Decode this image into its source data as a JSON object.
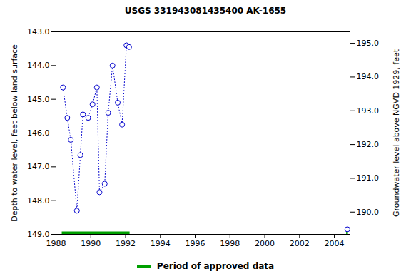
{
  "chart_data": {
    "type": "line",
    "title": "USGS 331943081435400 AK-1655",
    "x_label": null,
    "y_label": "Depth to water level, feet below land surface",
    "y2_label": "Groundwater level above NGVD 1929, feet",
    "x": [
      1988.4,
      1988.65,
      1988.85,
      1989.2,
      1989.4,
      1989.55,
      1989.85,
      1990.1,
      1990.35,
      1990.5,
      1990.8,
      1991.0,
      1991.25,
      1991.55,
      1991.8,
      1992.05,
      1992.2,
      null,
      2004.75
    ],
    "series": [
      {
        "name": "Depth to water level",
        "color": "#0000cc",
        "marker": "circle",
        "line_style": "dotted",
        "values": [
          144.65,
          145.55,
          146.2,
          148.3,
          146.65,
          145.45,
          145.55,
          145.15,
          144.65,
          147.75,
          147.5,
          145.4,
          144.0,
          145.1,
          145.75,
          143.4,
          143.45,
          null,
          148.85
        ]
      }
    ],
    "approved_periods": {
      "name": "Period of approved data",
      "color": "#00a000",
      "ranges": [
        [
          1988.35,
          1992.25
        ],
        [
          2004.7,
          2004.8
        ]
      ]
    },
    "xlim": [
      1988,
      2004.9
    ],
    "xticks": [
      1988,
      1990,
      1992,
      1994,
      1996,
      1998,
      2000,
      2002,
      2004
    ],
    "ylim": [
      143,
      149
    ],
    "yticks": [
      {
        "value": 143,
        "label": "143.0"
      },
      {
        "value": 144,
        "label": "144.0"
      },
      {
        "value": 145,
        "label": "145.0"
      },
      {
        "value": 146,
        "label": "146.0"
      },
      {
        "value": 147,
        "label": "147.0"
      },
      {
        "value": 148,
        "label": "148.0"
      },
      {
        "value": 149,
        "label": "149.0"
      }
    ],
    "y2lim": [
      195.34,
      189.34
    ],
    "y2ticks": [
      {
        "value": 190,
        "label": "190.0"
      },
      {
        "value": 191,
        "label": "191.0"
      },
      {
        "value": 192,
        "label": "192.0"
      },
      {
        "value": 193,
        "label": "193.0"
      },
      {
        "value": 194,
        "label": "194.0"
      },
      {
        "value": 195,
        "label": "195.0"
      }
    ],
    "grid": false,
    "legend": "bottom"
  }
}
